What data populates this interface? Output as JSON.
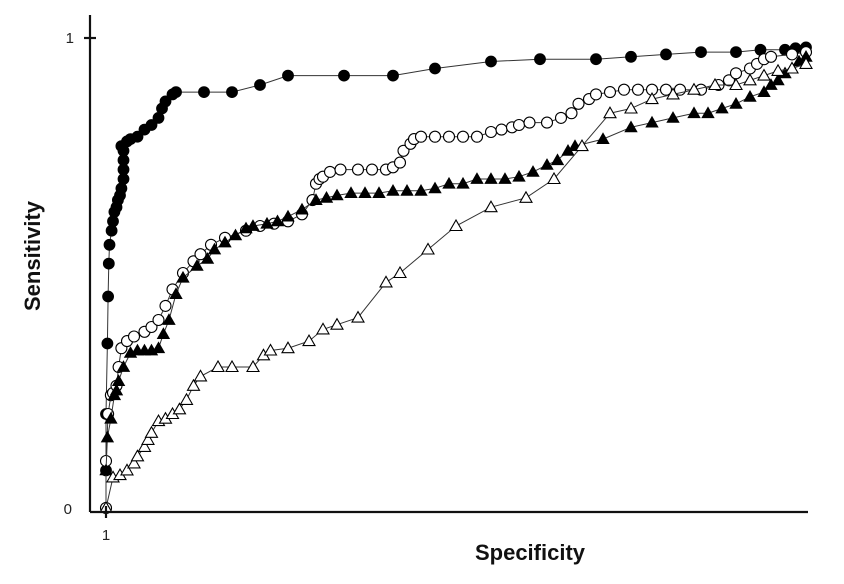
{
  "chart_data": {
    "type": "line",
    "title": "",
    "xlabel": "Specificity",
    "ylabel": "Sensitivity",
    "x_tick_labels": [
      {
        "value": 1,
        "label": "1"
      }
    ],
    "y_tick_labels": [
      {
        "value": 0,
        "label": "0"
      },
      {
        "value": 1,
        "label": "1"
      }
    ],
    "xlim": [
      1,
      0
    ],
    "ylim": [
      0,
      1
    ],
    "grid": false,
    "legend": "none",
    "series": [
      {
        "marker": "filled-circle",
        "color": "#000000",
        "points": [
          [
            1.0,
            0.0
          ],
          [
            1.0,
            0.08
          ],
          [
            1.0,
            0.2
          ],
          [
            0.998,
            0.35
          ],
          [
            0.997,
            0.45
          ],
          [
            0.996,
            0.52
          ],
          [
            0.995,
            0.56
          ],
          [
            0.992,
            0.59
          ],
          [
            0.99,
            0.61
          ],
          [
            0.988,
            0.63
          ],
          [
            0.985,
            0.64
          ],
          [
            0.983,
            0.655
          ],
          [
            0.98,
            0.665
          ],
          [
            0.978,
            0.68
          ],
          [
            0.975,
            0.7
          ],
          [
            0.975,
            0.72
          ],
          [
            0.975,
            0.74
          ],
          [
            0.975,
            0.76
          ],
          [
            0.978,
            0.77
          ],
          [
            0.97,
            0.78
          ],
          [
            0.965,
            0.785
          ],
          [
            0.955,
            0.79
          ],
          [
            0.945,
            0.805
          ],
          [
            0.935,
            0.815
          ],
          [
            0.925,
            0.83
          ],
          [
            0.92,
            0.85
          ],
          [
            0.915,
            0.865
          ],
          [
            0.905,
            0.88
          ],
          [
            0.9,
            0.885
          ],
          [
            0.86,
            0.885
          ],
          [
            0.82,
            0.885
          ],
          [
            0.78,
            0.9
          ],
          [
            0.74,
            0.92
          ],
          [
            0.66,
            0.92
          ],
          [
            0.59,
            0.92
          ],
          [
            0.53,
            0.935
          ],
          [
            0.45,
            0.95
          ],
          [
            0.38,
            0.955
          ],
          [
            0.3,
            0.955
          ],
          [
            0.25,
            0.96
          ],
          [
            0.2,
            0.965
          ],
          [
            0.15,
            0.97
          ],
          [
            0.1,
            0.97
          ],
          [
            0.065,
            0.975
          ],
          [
            0.03,
            0.975
          ],
          [
            0.015,
            0.978
          ],
          [
            0.0,
            0.98
          ]
        ]
      },
      {
        "marker": "open-circle",
        "color": "#000000",
        "points": [
          [
            1.0,
            0.0
          ],
          [
            1.0,
            0.1
          ],
          [
            0.997,
            0.2
          ],
          [
            0.993,
            0.24
          ],
          [
            0.99,
            0.245
          ],
          [
            0.985,
            0.26
          ],
          [
            0.982,
            0.3
          ],
          [
            0.978,
            0.34
          ],
          [
            0.97,
            0.355
          ],
          [
            0.96,
            0.365
          ],
          [
            0.945,
            0.375
          ],
          [
            0.935,
            0.385
          ],
          [
            0.925,
            0.4
          ],
          [
            0.915,
            0.43
          ],
          [
            0.905,
            0.465
          ],
          [
            0.89,
            0.5
          ],
          [
            0.875,
            0.525
          ],
          [
            0.865,
            0.54
          ],
          [
            0.85,
            0.56
          ],
          [
            0.83,
            0.575
          ],
          [
            0.8,
            0.59
          ],
          [
            0.78,
            0.6
          ],
          [
            0.76,
            0.605
          ],
          [
            0.74,
            0.61
          ],
          [
            0.72,
            0.625
          ],
          [
            0.705,
            0.655
          ],
          [
            0.7,
            0.69
          ],
          [
            0.695,
            0.7
          ],
          [
            0.69,
            0.705
          ],
          [
            0.68,
            0.715
          ],
          [
            0.665,
            0.72
          ],
          [
            0.64,
            0.72
          ],
          [
            0.62,
            0.72
          ],
          [
            0.6,
            0.72
          ],
          [
            0.59,
            0.725
          ],
          [
            0.58,
            0.735
          ],
          [
            0.575,
            0.76
          ],
          [
            0.565,
            0.775
          ],
          [
            0.56,
            0.785
          ],
          [
            0.55,
            0.79
          ],
          [
            0.53,
            0.79
          ],
          [
            0.51,
            0.79
          ],
          [
            0.49,
            0.79
          ],
          [
            0.47,
            0.79
          ],
          [
            0.45,
            0.8
          ],
          [
            0.435,
            0.805
          ],
          [
            0.42,
            0.81
          ],
          [
            0.41,
            0.815
          ],
          [
            0.395,
            0.82
          ],
          [
            0.37,
            0.82
          ],
          [
            0.35,
            0.83
          ],
          [
            0.335,
            0.84
          ],
          [
            0.325,
            0.86
          ],
          [
            0.31,
            0.87
          ],
          [
            0.3,
            0.88
          ],
          [
            0.28,
            0.885
          ],
          [
            0.26,
            0.89
          ],
          [
            0.24,
            0.89
          ],
          [
            0.22,
            0.89
          ],
          [
            0.2,
            0.89
          ],
          [
            0.18,
            0.89
          ],
          [
            0.15,
            0.89
          ],
          [
            0.125,
            0.9
          ],
          [
            0.11,
            0.91
          ],
          [
            0.1,
            0.925
          ],
          [
            0.08,
            0.935
          ],
          [
            0.07,
            0.945
          ],
          [
            0.06,
            0.955
          ],
          [
            0.05,
            0.96
          ],
          [
            0.02,
            0.965
          ],
          [
            0.0,
            0.97
          ]
        ]
      },
      {
        "marker": "filled-triangle",
        "color": "#000000",
        "points": [
          [
            1.0,
            0.0
          ],
          [
            1.0,
            0.08
          ],
          [
            0.998,
            0.15
          ],
          [
            0.993,
            0.19
          ],
          [
            0.988,
            0.24
          ],
          [
            0.985,
            0.25
          ],
          [
            0.982,
            0.27
          ],
          [
            0.975,
            0.3
          ],
          [
            0.965,
            0.33
          ],
          [
            0.955,
            0.335
          ],
          [
            0.945,
            0.335
          ],
          [
            0.935,
            0.335
          ],
          [
            0.925,
            0.34
          ],
          [
            0.918,
            0.37
          ],
          [
            0.91,
            0.4
          ],
          [
            0.9,
            0.455
          ],
          [
            0.89,
            0.49
          ],
          [
            0.87,
            0.515
          ],
          [
            0.855,
            0.53
          ],
          [
            0.845,
            0.55
          ],
          [
            0.83,
            0.565
          ],
          [
            0.815,
            0.58
          ],
          [
            0.8,
            0.595
          ],
          [
            0.79,
            0.6
          ],
          [
            0.77,
            0.605
          ],
          [
            0.755,
            0.61
          ],
          [
            0.74,
            0.62
          ],
          [
            0.72,
            0.635
          ],
          [
            0.7,
            0.655
          ],
          [
            0.685,
            0.66
          ],
          [
            0.67,
            0.665
          ],
          [
            0.65,
            0.67
          ],
          [
            0.63,
            0.67
          ],
          [
            0.61,
            0.67
          ],
          [
            0.59,
            0.675
          ],
          [
            0.57,
            0.675
          ],
          [
            0.55,
            0.675
          ],
          [
            0.53,
            0.68
          ],
          [
            0.51,
            0.69
          ],
          [
            0.49,
            0.69
          ],
          [
            0.47,
            0.7
          ],
          [
            0.45,
            0.7
          ],
          [
            0.43,
            0.7
          ],
          [
            0.41,
            0.705
          ],
          [
            0.39,
            0.715
          ],
          [
            0.37,
            0.73
          ],
          [
            0.355,
            0.74
          ],
          [
            0.34,
            0.76
          ],
          [
            0.33,
            0.77
          ],
          [
            0.29,
            0.785
          ],
          [
            0.25,
            0.81
          ],
          [
            0.22,
            0.82
          ],
          [
            0.19,
            0.83
          ],
          [
            0.16,
            0.84
          ],
          [
            0.14,
            0.84
          ],
          [
            0.12,
            0.85
          ],
          [
            0.1,
            0.86
          ],
          [
            0.08,
            0.875
          ],
          [
            0.06,
            0.885
          ],
          [
            0.05,
            0.9
          ],
          [
            0.04,
            0.91
          ],
          [
            0.03,
            0.925
          ],
          [
            0.02,
            0.935
          ],
          [
            0.01,
            0.95
          ],
          [
            0.0,
            0.96
          ]
        ]
      },
      {
        "marker": "open-triangle",
        "color": "#000000",
        "points": [
          [
            1.0,
            0.0
          ],
          [
            0.99,
            0.065
          ],
          [
            0.98,
            0.07
          ],
          [
            0.97,
            0.08
          ],
          [
            0.96,
            0.095
          ],
          [
            0.955,
            0.11
          ],
          [
            0.945,
            0.13
          ],
          [
            0.94,
            0.145
          ],
          [
            0.935,
            0.16
          ],
          [
            0.925,
            0.185
          ],
          [
            0.915,
            0.19
          ],
          [
            0.905,
            0.2
          ],
          [
            0.895,
            0.21
          ],
          [
            0.885,
            0.23
          ],
          [
            0.875,
            0.26
          ],
          [
            0.865,
            0.28
          ],
          [
            0.84,
            0.3
          ],
          [
            0.82,
            0.3
          ],
          [
            0.79,
            0.3
          ],
          [
            0.775,
            0.325
          ],
          [
            0.765,
            0.335
          ],
          [
            0.74,
            0.34
          ],
          [
            0.71,
            0.355
          ],
          [
            0.69,
            0.38
          ],
          [
            0.67,
            0.39
          ],
          [
            0.64,
            0.405
          ],
          [
            0.6,
            0.48
          ],
          [
            0.58,
            0.5
          ],
          [
            0.54,
            0.55
          ],
          [
            0.5,
            0.6
          ],
          [
            0.45,
            0.64
          ],
          [
            0.4,
            0.66
          ],
          [
            0.36,
            0.7
          ],
          [
            0.32,
            0.77
          ],
          [
            0.28,
            0.84
          ],
          [
            0.25,
            0.85
          ],
          [
            0.22,
            0.87
          ],
          [
            0.19,
            0.88
          ],
          [
            0.16,
            0.89
          ],
          [
            0.13,
            0.9
          ],
          [
            0.1,
            0.9
          ],
          [
            0.08,
            0.91
          ],
          [
            0.06,
            0.92
          ],
          [
            0.04,
            0.93
          ],
          [
            0.02,
            0.935
          ],
          [
            0.0,
            0.945
          ]
        ]
      }
    ]
  }
}
